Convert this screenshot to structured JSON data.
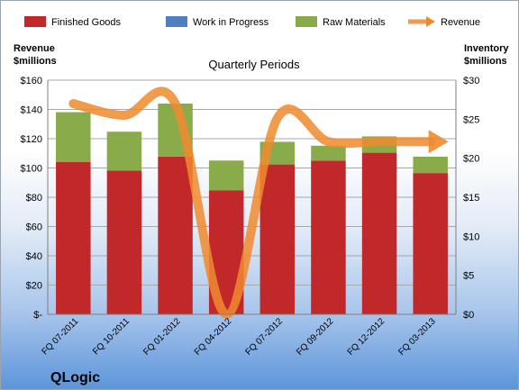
{
  "chart_data": {
    "type": "bar",
    "title": "Quarterly Periods",
    "ylabel_left": [
      "Revenue",
      "$millions"
    ],
    "ylabel_right": [
      "Inventory",
      "$millions"
    ],
    "categories": [
      "FQ 07-2011",
      "FQ 10-2011",
      "FQ 01-2012",
      "FQ 04-2012",
      "FQ 07-2012",
      "FQ 09-2012",
      "FQ 12-2012",
      "FQ 03-2013"
    ],
    "stacked": true,
    "series": [
      {
        "name": "Finished Goods",
        "axis": "right",
        "color": "#c0282a",
        "values": [
          19.5,
          18.4,
          20.2,
          15.9,
          19.2,
          19.7,
          20.7,
          18.1
        ]
      },
      {
        "name": "Work in Progress",
        "axis": "right",
        "color": "#4f7fbd",
        "values": [
          0,
          0,
          0,
          0,
          0,
          0,
          0,
          0
        ]
      },
      {
        "name": "Raw Materials",
        "axis": "right",
        "color": "#8aab4a",
        "values": [
          6.4,
          5.0,
          6.8,
          3.8,
          2.9,
          1.9,
          2.1,
          2.1
        ]
      },
      {
        "name": "Revenue",
        "axis": "left",
        "type": "line",
        "color": "#ee8a2e",
        "values": [
          144,
          136,
          144,
          0,
          134,
          118,
          118,
          118
        ]
      }
    ],
    "ylim_left": [
      0,
      160
    ],
    "ylim_right": [
      0,
      30
    ],
    "yticks_left": [
      "$-",
      "$20",
      "$40",
      "$60",
      "$80",
      "$100",
      "$120",
      "$140",
      "$160"
    ],
    "yticks_right": [
      "$0",
      "$5",
      "$10",
      "$15",
      "$20",
      "$25",
      "$30"
    ],
    "grid": true,
    "legend_position": "top",
    "brand": "QLogic"
  }
}
